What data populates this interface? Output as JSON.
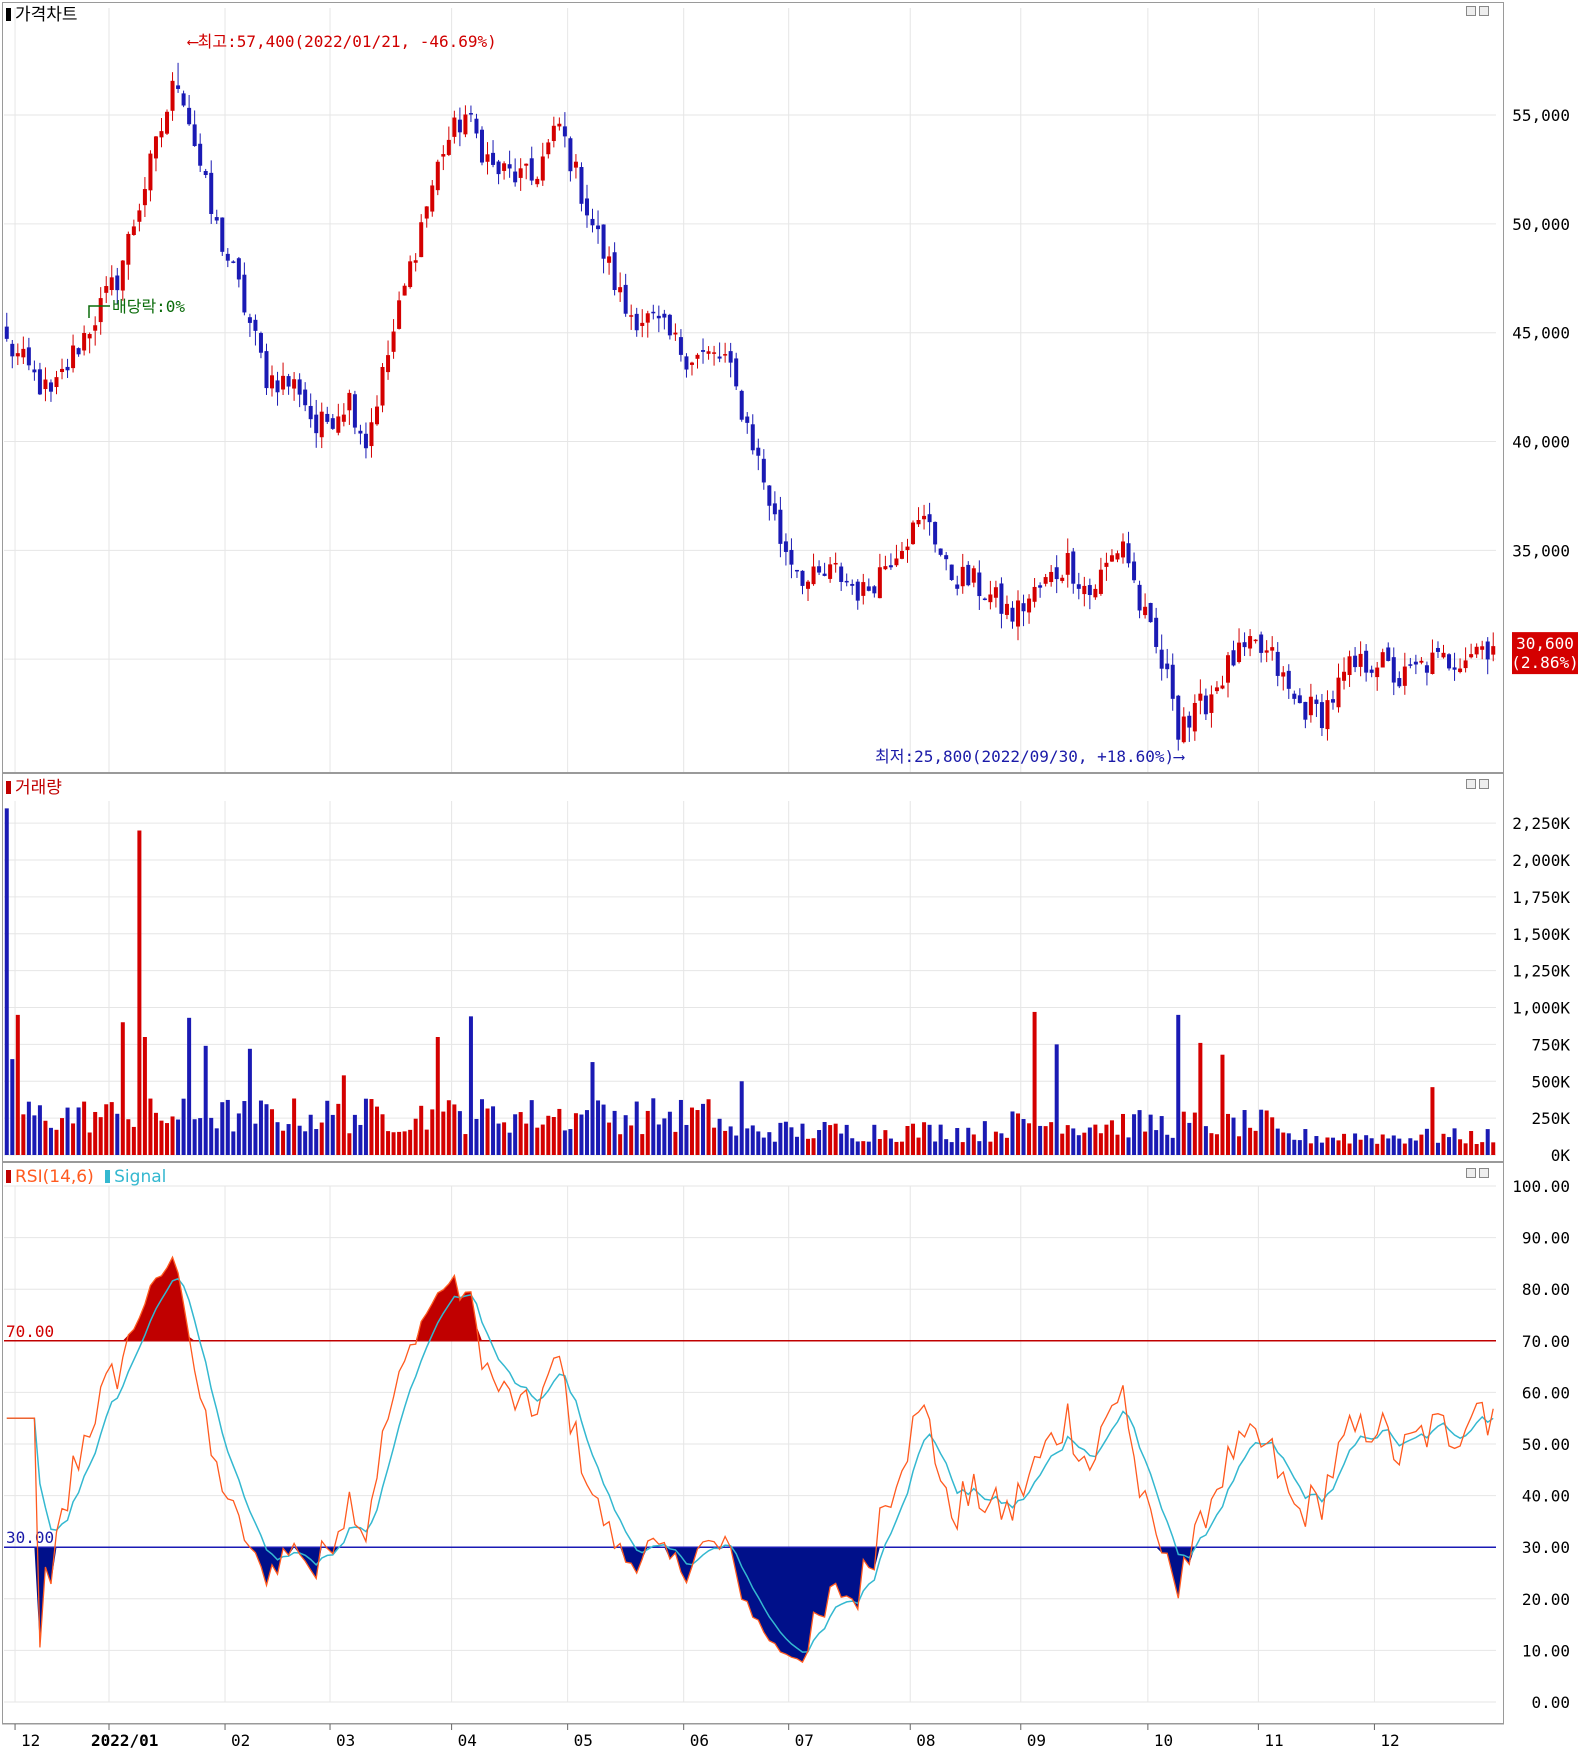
{
  "colors": {
    "up": "#d40000",
    "down": "#1a1ab4",
    "rsi_line": "#ff5a1f",
    "signal_line": "#34b8d0",
    "overbought_fill": "#c00000",
    "oversold_fill": "#00108a",
    "grid": "#e6e6e6"
  },
  "price_panel": {
    "title": "가격차트",
    "y_ticks": [
      "55,000",
      "50,000",
      "45,000",
      "40,000",
      "35,000"
    ],
    "y_tick_values": [
      55000,
      50000,
      45000,
      40000,
      35000
    ],
    "last_price_label": "30,600",
    "last_change_label": "(2.86%)",
    "high_annotation": "⟵최고:57,400(2022/01/21, -46.69%)",
    "low_annotation": "최저:25,800(2022/09/30, +18.60%)⟶",
    "dividend_annotation": "배당락:0%"
  },
  "volume_panel": {
    "title": "거래량",
    "y_ticks": [
      "2,250K",
      "2,000K",
      "1,750K",
      "1,500K",
      "1,250K",
      "1,000K",
      "750K",
      "500K",
      "250K",
      "0K"
    ]
  },
  "rsi_panel": {
    "title_rsi": "RSI(14,6)",
    "title_signal": "Signal",
    "y_ticks": [
      "100.00",
      "90.00",
      "80.00",
      "70.00",
      "60.00",
      "50.00",
      "40.00",
      "30.00",
      "20.00",
      "10.00",
      "0.00"
    ],
    "overbought_label": "70.00",
    "oversold_label": "30.00"
  },
  "x_axis": {
    "labels": [
      "12",
      "2022/01",
      "02",
      "03",
      "04",
      "05",
      "06",
      "07",
      "08",
      "09",
      "10",
      "11",
      "12"
    ]
  },
  "chart_data": [
    {
      "type": "candlestick",
      "title": "가격차트",
      "ylim": [
        25000,
        59000
      ],
      "x": [
        "2021/12",
        "2022/01",
        "2022/02",
        "2022/03",
        "2022/04",
        "2022/05",
        "2022/06",
        "2022/07",
        "2022/08",
        "2022/09",
        "2022/10",
        "2022/11",
        "2022/12"
      ],
      "close_approx": [
        43500,
        57400,
        46000,
        40500,
        55500,
        51000,
        43500,
        33500,
        37500,
        32000,
        27500,
        28000,
        30600
      ],
      "high": {
        "value": 57400,
        "date": "2022/01/21"
      },
      "low": {
        "value": 25800,
        "date": "2022/09/30"
      },
      "last": 30600
    },
    {
      "type": "bar",
      "title": "거래량",
      "ylim": [
        0,
        2400000
      ],
      "x": [
        "2021/12",
        "2022/01",
        "2022/02",
        "2022/03",
        "2022/04",
        "2022/05",
        "2022/06",
        "2022/07",
        "2022/08",
        "2022/09",
        "2022/10",
        "2022/11",
        "2022/12"
      ],
      "peak_values": [
        2350000,
        2200000,
        950000,
        550000,
        800000,
        650000,
        400000,
        330000,
        970000,
        950000,
        480000,
        330000,
        220000
      ]
    },
    {
      "type": "line",
      "title": "RSI(14,6)",
      "ylim": [
        0,
        100
      ],
      "x": [
        "2021/12",
        "2022/01",
        "2022/02",
        "2022/03",
        "2022/04",
        "2022/05",
        "2022/06",
        "2022/07",
        "2022/08",
        "2022/09",
        "2022/10",
        "2022/11",
        "2022/12"
      ],
      "series": [
        {
          "name": "RSI(14,6)",
          "values": [
            55,
            78,
            14,
            42,
            92,
            35,
            42,
            26,
            68,
            50,
            20,
            38,
            60
          ]
        },
        {
          "name": "Signal",
          "values": [
            57,
            75,
            20,
            38,
            86,
            38,
            40,
            28,
            60,
            48,
            25,
            40,
            55
          ]
        }
      ],
      "levels": [
        70,
        30
      ]
    }
  ]
}
